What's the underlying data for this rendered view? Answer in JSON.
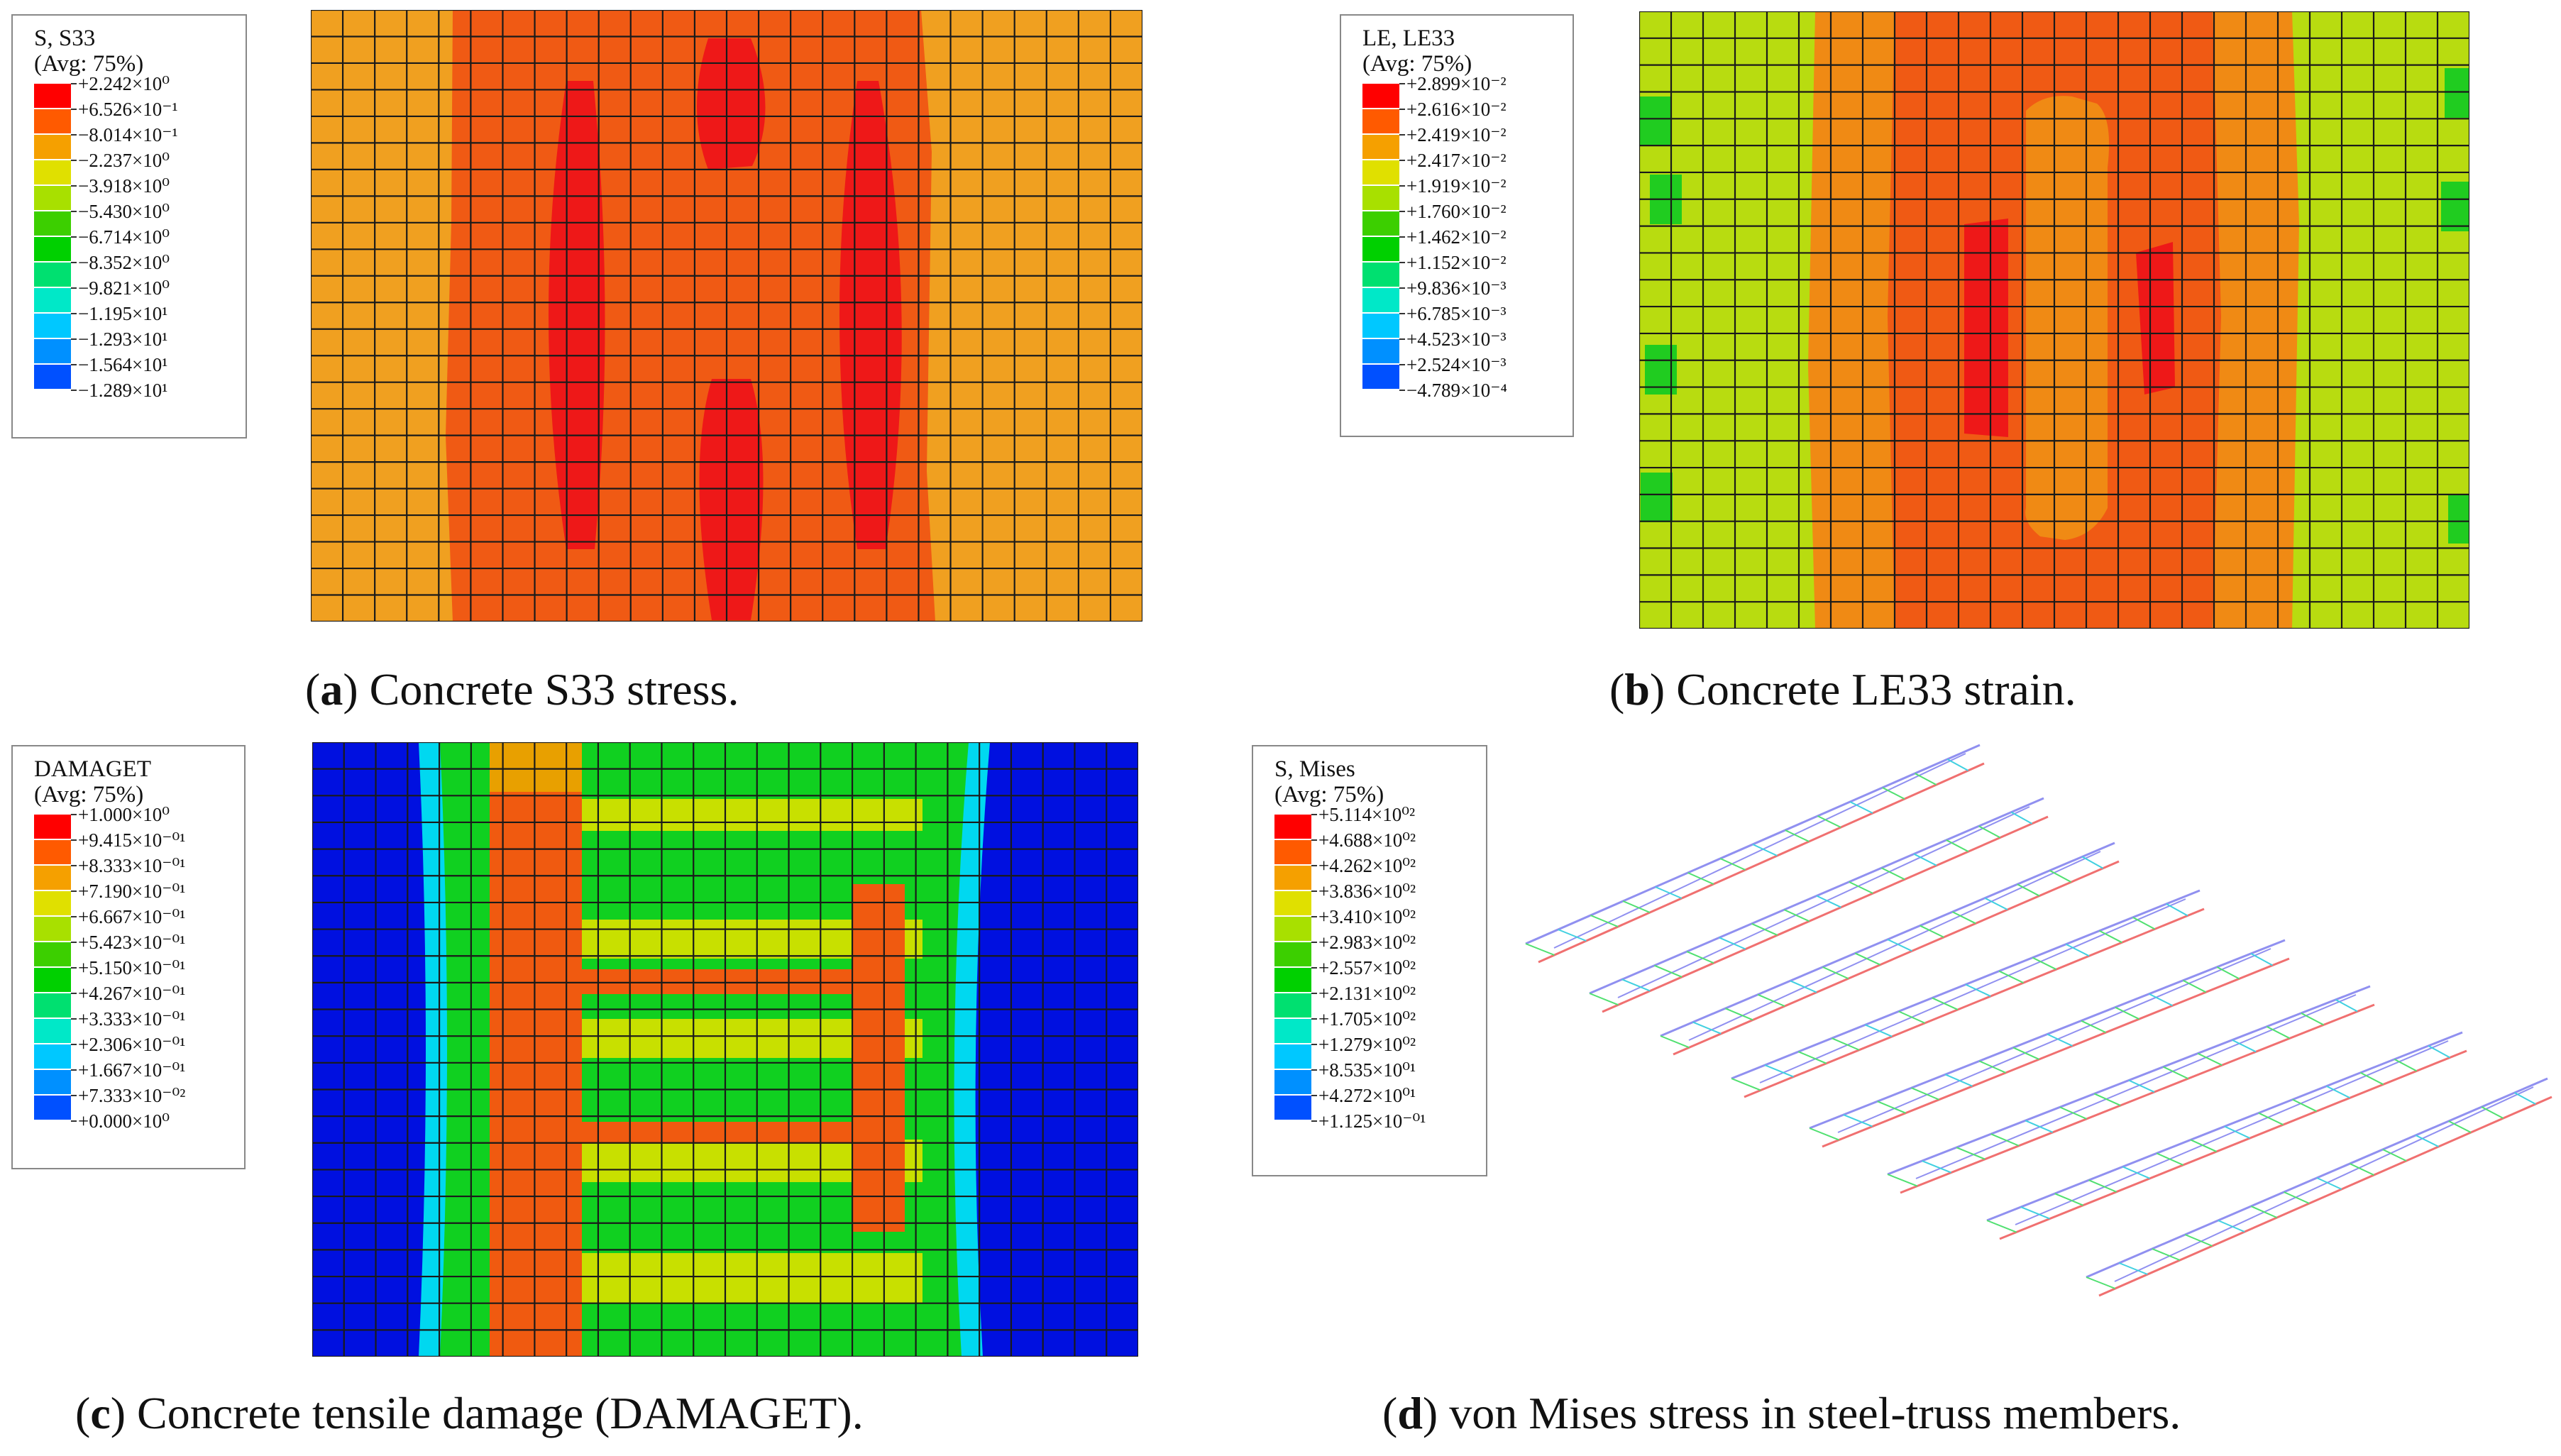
{
  "panels": [
    {
      "id": "a",
      "legend": {
        "title1": "S, S33",
        "title2": "(Avg: 75%)",
        "labels": [
          "+2.242×10⁰",
          "+6.526×10⁻¹",
          "−8.014×10⁻¹",
          "−2.237×10⁰",
          "−3.918×10⁰",
          "−5.430×10⁰",
          "−6.714×10⁰",
          "−8.352×10⁰",
          "−9.821×10⁰",
          "−1.195×10¹",
          "−1.293×10¹",
          "−1.564×10¹",
          "−1.289×10¹"
        ]
      },
      "caption": {
        "letter": "a",
        "text": " Concrete S33 stress."
      }
    },
    {
      "id": "b",
      "legend": {
        "title1": "LE, LE33",
        "title2": "(Avg: 75%)",
        "labels": [
          "+2.899×10⁻²",
          "+2.616×10⁻²",
          "+2.419×10⁻²",
          "+2.417×10⁻²",
          "+1.919×10⁻²",
          "+1.760×10⁻²",
          "+1.462×10⁻²",
          "+1.152×10⁻²",
          "+9.836×10⁻³",
          "+6.785×10⁻³",
          "+4.523×10⁻³",
          "+2.524×10⁻³",
          "−4.789×10⁻⁴"
        ]
      },
      "caption": {
        "letter": "b",
        "text": " Concrete LE33 strain."
      }
    },
    {
      "id": "c",
      "legend": {
        "title1": "DAMAGET",
        "title2": "(Avg: 75%)",
        "labels": [
          "+1.000×10⁰",
          "+9.415×10⁻⁰¹",
          "+8.333×10⁻⁰¹",
          "+7.190×10⁻⁰¹",
          "+6.667×10⁻⁰¹",
          "+5.423×10⁻⁰¹",
          "+5.150×10⁻⁰¹",
          "+4.267×10⁻⁰¹",
          "+3.333×10⁻⁰¹",
          "+2.306×10⁻⁰¹",
          "+1.667×10⁻⁰¹",
          "+7.333×10⁻⁰²",
          "+0.000×10⁰"
        ]
      },
      "caption": {
        "letter": "c",
        "text": " Concrete tensile damage (DAMAGET)."
      }
    },
    {
      "id": "d",
      "legend": {
        "title1": "S, Mises",
        "title2": "(Avg: 75%)",
        "labels": [
          "+5.114×10⁰²",
          "+4.688×10⁰²",
          "+4.262×10⁰²",
          "+3.836×10⁰²",
          "+3.410×10⁰²",
          "+2.983×10⁰²",
          "+2.557×10⁰²",
          "+2.131×10⁰²",
          "+1.705×10⁰²",
          "+1.279×10⁰²",
          "+8.535×10⁰¹",
          "+4.272×10⁰¹",
          "+1.125×10⁻⁰¹"
        ]
      },
      "caption": {
        "letter": "d",
        "text": " von Mises stress in steel-truss members."
      }
    }
  ],
  "colors": {
    "scale": [
      "#ff0000",
      "#ff5a00",
      "#f5a000",
      "#e0e000",
      "#a8e000",
      "#3ccf00",
      "#00d000",
      "#00e070",
      "#00e8c8",
      "#00c8ff",
      "#0090ff",
      "#0050ff",
      "#0000ff"
    ],
    "a": {
      "base": "#f0a020",
      "mid": "#f05a14",
      "high": "#ee1818"
    },
    "b": {
      "base": "#b8dc10",
      "mid": "#f08a14",
      "high": "#f05a14",
      "peak": "#ee1818",
      "green": "#20cc20"
    },
    "c": {
      "blue": "#0010e0",
      "cyan": "#00d8f0",
      "green": "#10d020",
      "yellow": "#c8e000",
      "orange": "#f05a10",
      "amber": "#e8a000"
    },
    "d": {
      "blue": "#9090f0",
      "red": "#f07070",
      "green": "#50e070",
      "cyan": "#40d0e0"
    }
  }
}
